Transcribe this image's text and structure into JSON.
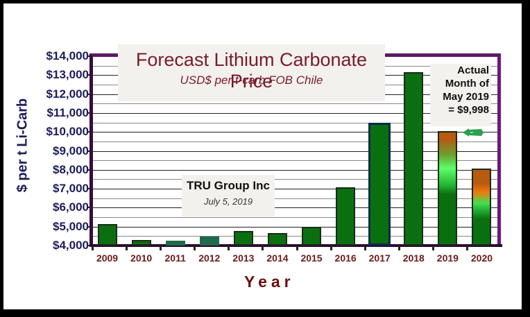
{
  "chart_data": {
    "type": "bar",
    "title": "Forecast Lithium Carbonate Price",
    "subtitle": "USD$ per t-carb FOB Chile",
    "xlabel": "Year",
    "ylabel": "$ per t Li-Carb",
    "categories": [
      "2009",
      "2010",
      "2011",
      "2012",
      "2013",
      "2014",
      "2015",
      "2016",
      "2017",
      "2018",
      "2019",
      "2020"
    ],
    "values": [
      5130,
      4290,
      4250,
      4470,
      4760,
      4660,
      4990,
      7070,
      10480,
      13150,
      10040,
      8060
    ],
    "ylim": [
      4000,
      14000
    ],
    "y_ticks": [
      "$14,000",
      "$13,000",
      "$12,000",
      "$11,000",
      "$10,000",
      "$9,000",
      "$8,000",
      "$7,000",
      "$6,000",
      "$5,000",
      "$4,000"
    ],
    "grid": true,
    "legend": null,
    "annotations": [
      {
        "text": "Actual Month of May 2019 = $9,998",
        "target": "2019",
        "value": 9998
      },
      {
        "text": "TRU Group Inc",
        "subtext": "July 5, 2019"
      }
    ],
    "colors": {
      "bar": "#0a700f",
      "forecast_top": "#b85a10",
      "axis_frame": "#5a1a66",
      "tick_label": "#1c1c5c",
      "category_label": "#6b1a1a",
      "title": "#7a1a2a"
    }
  },
  "title": {
    "main": "Forecast Lithium Carbonate Price",
    "sub": "USD$ per t-carb FOB Chile"
  },
  "credit": {
    "org": "TRU Group Inc",
    "date": "July 5, 2019"
  },
  "note": {
    "lines": [
      "Actual",
      "Month of",
      "May 2019",
      "= $9,998"
    ]
  },
  "axes": {
    "y_title": "$ per t Li-Carb",
    "x_title": "Year",
    "y_ticks": [
      "$14,000",
      "$13,000",
      "$12,000",
      "$11,000",
      "$10,000",
      "$9,000",
      "$8,000",
      "$7,000",
      "$6,000",
      "$5,000",
      "$4,000"
    ],
    "x_labels": [
      "2009",
      "2010",
      "2011",
      "2012",
      "2013",
      "2014",
      "2015",
      "2016",
      "2017",
      "2018",
      "2019",
      "2020"
    ]
  }
}
